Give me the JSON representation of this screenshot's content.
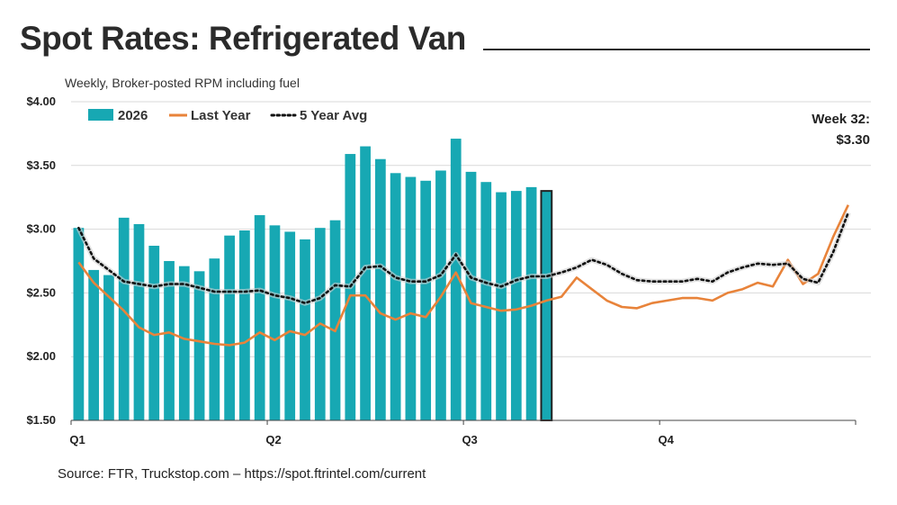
{
  "header": {
    "title": "Spot Rates: Refrigerated Van",
    "subtitle": "Weekly, Broker-posted RPM including fuel"
  },
  "footer": {
    "source": "Source: FTR, Truckstop.com – https://spot.ftrintel.com/current"
  },
  "annotation": {
    "line1": "Week 32:",
    "line2": "$3.30"
  },
  "colors": {
    "bar": "#17A8B3",
    "bar_current_stroke": "#222222",
    "last_year": "#E8833A",
    "avg": "#111111",
    "grid": "#d9d9d9"
  },
  "chart_data": {
    "type": "bar",
    "x_range": [
      1,
      53
    ],
    "ylim": [
      1.5,
      4.0
    ],
    "yticks": [
      1.5,
      2.0,
      2.5,
      3.0,
      3.5,
      4.0
    ],
    "ytick_labels": [
      "$1.50",
      "$2.00",
      "$2.50",
      "$3.00",
      "$3.50",
      "$4.00"
    ],
    "quarter_labels": [
      {
        "label": "Q1",
        "week": 1
      },
      {
        "label": "Q2",
        "week": 14
      },
      {
        "label": "Q3",
        "week": 27
      },
      {
        "label": "Q4",
        "week": 40
      }
    ],
    "grid": true,
    "legend_position": "top-left",
    "series": [
      {
        "name": "2026",
        "kind": "bar",
        "x": [
          1,
          2,
          3,
          4,
          5,
          6,
          7,
          8,
          9,
          10,
          11,
          12,
          13,
          14,
          15,
          16,
          17,
          18,
          19,
          20,
          21,
          22,
          23,
          24,
          25,
          26,
          27,
          28,
          29,
          30,
          31,
          32
        ],
        "values": [
          3.01,
          2.68,
          2.64,
          3.09,
          3.04,
          2.87,
          2.75,
          2.71,
          2.67,
          2.77,
          2.95,
          2.99,
          3.11,
          3.03,
          2.98,
          2.92,
          3.01,
          3.07,
          3.59,
          3.65,
          3.55,
          3.44,
          3.41,
          3.38,
          3.46,
          3.71,
          3.45,
          3.37,
          3.29,
          3.3,
          3.33,
          3.3
        ]
      },
      {
        "name": "Last Year",
        "kind": "line",
        "x": [
          1,
          2,
          3,
          4,
          5,
          6,
          7,
          8,
          9,
          10,
          11,
          12,
          13,
          14,
          15,
          16,
          17,
          18,
          19,
          20,
          21,
          22,
          23,
          24,
          25,
          26,
          27,
          28,
          29,
          30,
          31,
          32,
          33,
          34,
          35,
          36,
          37,
          38,
          39,
          40,
          41,
          42,
          43,
          44,
          45,
          46,
          47,
          48,
          49,
          50,
          51,
          52
        ],
        "values": [
          2.74,
          2.58,
          2.47,
          2.36,
          2.23,
          2.17,
          2.19,
          2.14,
          2.12,
          2.1,
          2.09,
          2.11,
          2.19,
          2.13,
          2.2,
          2.17,
          2.26,
          2.2,
          2.48,
          2.48,
          2.34,
          2.29,
          2.34,
          2.31,
          2.47,
          2.66,
          2.42,
          2.39,
          2.36,
          2.37,
          2.4,
          2.44,
          2.47,
          2.62,
          2.53,
          2.44,
          2.39,
          2.38,
          2.42,
          2.44,
          2.46,
          2.46,
          2.44,
          2.5,
          2.53,
          2.58,
          2.55,
          2.76,
          2.57,
          2.65,
          2.94,
          3.19
        ]
      },
      {
        "name": "5 Year Avg",
        "kind": "dotted-line",
        "x": [
          1,
          2,
          3,
          4,
          5,
          6,
          7,
          8,
          9,
          10,
          11,
          12,
          13,
          14,
          15,
          16,
          17,
          18,
          19,
          20,
          21,
          22,
          23,
          24,
          25,
          26,
          27,
          28,
          29,
          30,
          31,
          32,
          33,
          34,
          35,
          36,
          37,
          38,
          39,
          40,
          41,
          42,
          43,
          44,
          45,
          46,
          47,
          48,
          49,
          50,
          51,
          52
        ],
        "values": [
          3.01,
          2.77,
          2.68,
          2.59,
          2.57,
          2.55,
          2.57,
          2.57,
          2.54,
          2.51,
          2.51,
          2.51,
          2.52,
          2.48,
          2.46,
          2.42,
          2.46,
          2.56,
          2.55,
          2.7,
          2.71,
          2.62,
          2.59,
          2.59,
          2.64,
          2.8,
          2.62,
          2.58,
          2.55,
          2.6,
          2.63,
          2.63,
          2.66,
          2.7,
          2.76,
          2.72,
          2.65,
          2.6,
          2.59,
          2.59,
          2.59,
          2.61,
          2.59,
          2.66,
          2.7,
          2.73,
          2.72,
          2.73,
          2.61,
          2.58,
          2.82,
          3.13
        ]
      }
    ]
  }
}
